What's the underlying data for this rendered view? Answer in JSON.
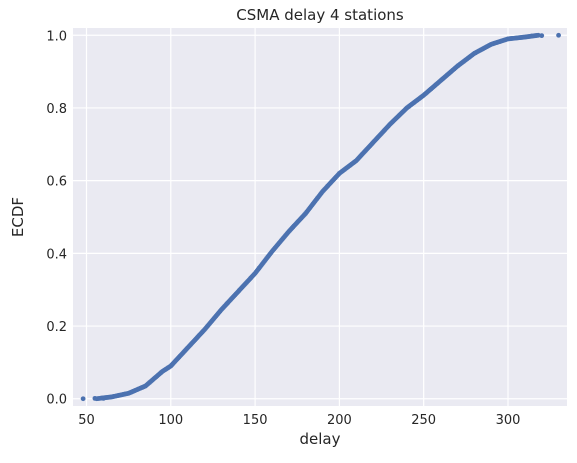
{
  "chart_data": {
    "type": "scatter",
    "title": "CSMA delay 4 stations",
    "xlabel": "delay",
    "ylabel": "ECDF",
    "xlim": [
      42,
      335
    ],
    "ylim": [
      -0.02,
      1.02
    ],
    "xticks": [
      50,
      100,
      150,
      200,
      250,
      300
    ],
    "yticks": [
      0.0,
      0.2,
      0.4,
      0.6,
      0.8,
      1.0
    ],
    "grid": true,
    "background_color": "#eaeaf2",
    "grid_color": "#ffffff",
    "marker_color": "#4c72b0",
    "curve_points": [
      [
        56,
        0.0
      ],
      [
        65,
        0.005
      ],
      [
        75,
        0.015
      ],
      [
        85,
        0.035
      ],
      [
        90,
        0.055
      ],
      [
        95,
        0.075
      ],
      [
        100,
        0.09
      ],
      [
        110,
        0.14
      ],
      [
        120,
        0.19
      ],
      [
        130,
        0.245
      ],
      [
        140,
        0.295
      ],
      [
        150,
        0.345
      ],
      [
        160,
        0.405
      ],
      [
        170,
        0.46
      ],
      [
        180,
        0.51
      ],
      [
        190,
        0.57
      ],
      [
        200,
        0.62
      ],
      [
        210,
        0.655
      ],
      [
        220,
        0.705
      ],
      [
        230,
        0.755
      ],
      [
        240,
        0.8
      ],
      [
        250,
        0.835
      ],
      [
        260,
        0.875
      ],
      [
        270,
        0.915
      ],
      [
        280,
        0.95
      ],
      [
        290,
        0.975
      ],
      [
        300,
        0.99
      ],
      [
        310,
        0.995
      ],
      [
        318,
        1.0
      ]
    ],
    "outlier_points": [
      [
        48,
        0.0
      ],
      [
        55,
        0.001
      ],
      [
        60,
        0.001
      ],
      [
        314,
        0.998
      ],
      [
        320,
        0.999
      ],
      [
        330,
        1.0
      ]
    ]
  }
}
